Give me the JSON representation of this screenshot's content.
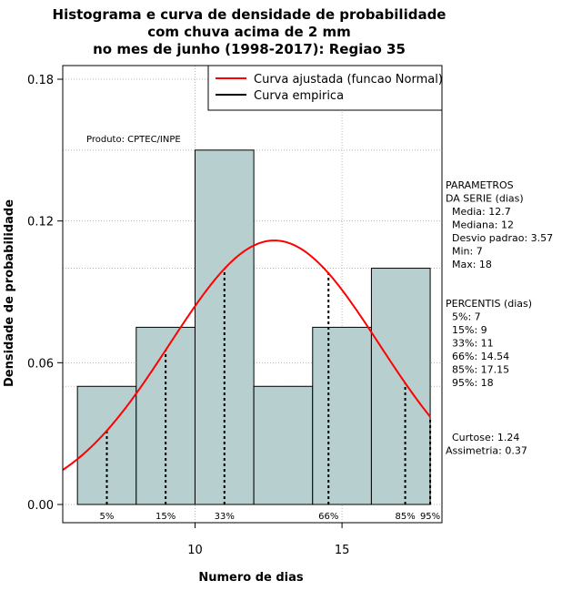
{
  "chart_data": {
    "type": "bar",
    "title_lines": [
      "Histograma e curva de densidade de probabilidade",
      "com chuva acima de 2 mm",
      "no mes de junho (1998-2017): Regiao 35"
    ],
    "xlabel": "Numero de dias",
    "ylabel": "Densidade de probabilidade",
    "xlim": [
      5.5,
      18.4
    ],
    "ylim": [
      0,
      0.18
    ],
    "x_ticks": [
      10,
      15
    ],
    "y_ticks": [
      0.0,
      0.06,
      0.12,
      0.18
    ],
    "x_tick_labels": [
      "10",
      "15"
    ],
    "y_tick_labels": [
      "0.00",
      "0.06",
      "0.12",
      "0.18"
    ],
    "grid": true,
    "bins": [
      {
        "from": 6,
        "to": 8,
        "density": 0.05
      },
      {
        "from": 8,
        "to": 10,
        "density": 0.075
      },
      {
        "from": 10,
        "to": 12,
        "density": 0.15
      },
      {
        "from": 12,
        "to": 14,
        "density": 0.05
      },
      {
        "from": 14,
        "to": 16,
        "density": 0.075
      },
      {
        "from": 16,
        "to": 18,
        "density": 0.1
      }
    ],
    "bar_color": "#b7cfcf",
    "normal_curve": {
      "mean": 12.7,
      "sd": 3.57,
      "color": "#ff0000"
    },
    "percentile_lines": [
      {
        "label": "5%",
        "x": 7,
        "y": 0.0313
      },
      {
        "label": "15%",
        "x": 9,
        "y": 0.0654
      },
      {
        "label": "33%",
        "x": 11,
        "y": 0.0997
      },
      {
        "label": "66%",
        "x": 14.54,
        "y": 0.0982
      },
      {
        "label": "85%",
        "x": 17.15,
        "y": 0.0511
      },
      {
        "label": "95%",
        "x": 18,
        "y": 0.0369
      }
    ],
    "legend": [
      {
        "label": "Curva ajustada (funcao Normal)",
        "color": "#ff0000"
      },
      {
        "label": "Curva empirica",
        "color": "#000000"
      }
    ],
    "legend_position": "top-right",
    "annotation": "Produto: CPTEC/INPE"
  },
  "side_panel": {
    "parametros_lines": [
      "PARAMETROS",
      "DA SERIE (dias)",
      "  Media: 12.7",
      "  Mediana: 12",
      "  Desvio padrao: 3.57",
      "  Min: 7",
      "  Max: 18"
    ],
    "percentis_lines": [
      "PERCENTIS (dias)",
      "  5%: 7",
      "  15%: 9",
      "  33%: 11",
      "  66%: 14.54",
      "  85%: 17.15",
      "  95%: 18"
    ],
    "stats_lines": [
      "  Curtose: 1.24",
      "Assimetria: 0.37"
    ]
  }
}
